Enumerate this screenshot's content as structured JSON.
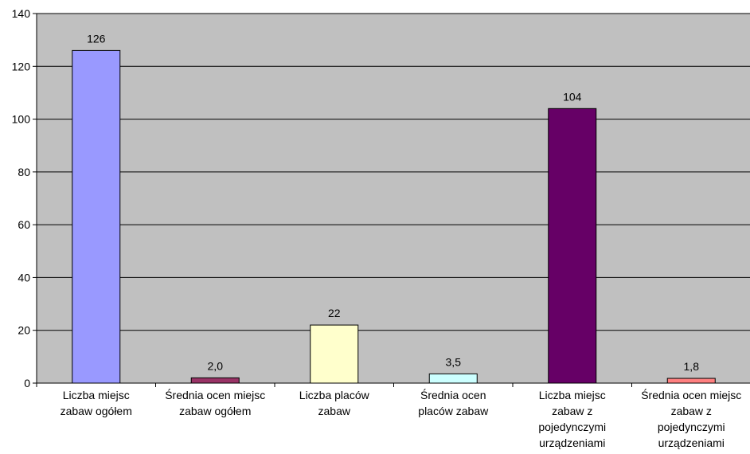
{
  "chart_data": {
    "type": "bar",
    "categories": [
      [
        "Liczba miejsc",
        "zabaw ogółem"
      ],
      [
        "Średnia ocen miejsc",
        "zabaw ogółem"
      ],
      [
        "Liczba placów",
        "zabaw"
      ],
      [
        "Średnia ocen",
        "placów zabaw"
      ],
      [
        "Liczba miejsc",
        "zabaw z",
        "pojedynczymi",
        "urządzeniami"
      ],
      [
        "Średnia ocen miejsc",
        "zabaw z",
        "pojedynczymi",
        "urządzeniami"
      ]
    ],
    "values": [
      126,
      2.0,
      22,
      3.5,
      104,
      1.8
    ],
    "data_labels": [
      "126",
      "2,0",
      "22",
      "3,5",
      "104",
      "1,8"
    ],
    "bar_colors": [
      "#9999ff",
      "#993366",
      "#ffffcc",
      "#ccffff",
      "#660066",
      "#ff8080"
    ],
    "ylim": [
      0,
      140
    ],
    "yticks": [
      0,
      20,
      40,
      60,
      80,
      100,
      120,
      140
    ],
    "plot_background": "#c0c0c0",
    "grid": true,
    "legend": "none"
  }
}
